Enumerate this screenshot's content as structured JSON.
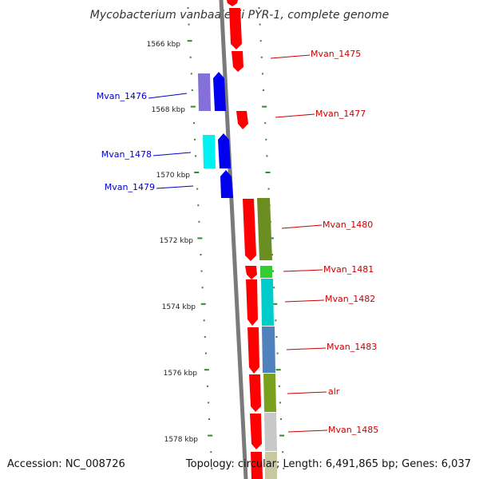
{
  "title": "Mycobacterium vanbaalenii PYR-1, complete genome",
  "footer": {
    "accession": "Accession: NC_008726",
    "summary": "Topology: circular; Length: 6,491,865 bp; Genes: 6,037"
  },
  "colors": {
    "backbone": "#7a7a7a",
    "tick_dots": "#2e8b2e",
    "label_forward": "#cc0000",
    "label_reverse": "#0000cc"
  },
  "chart_data": {
    "type": "genome-map",
    "title": "Mycobacterium vanbaalenii PYR-1, complete genome",
    "scale_unit": "kbp",
    "ticks": [
      "1566 kbp",
      "1568 kbp",
      "1570 kbp",
      "1572 kbp",
      "1574 kbp",
      "1576 kbp",
      "1578 kbp"
    ],
    "genes": [
      {
        "label": "",
        "strand": "forward",
        "color": "#ff0000",
        "start_kbp": 1564.7,
        "end_kbp": 1565.8
      },
      {
        "label": "Mvan_1475",
        "strand": "forward",
        "color": "#ff0000",
        "start_kbp": 1565.8,
        "end_kbp": 1566.4
      },
      {
        "label": "Mvan_1476",
        "strand": "reverse",
        "color": "#0000ee",
        "start_kbp": 1567.0,
        "end_kbp": 1568.2
      },
      {
        "label": "",
        "strand": "reverse",
        "color": "#8370d8",
        "start_kbp": 1567.0,
        "end_kbp": 1568.2
      },
      {
        "label": "Mvan_1477",
        "strand": "forward",
        "color": "#ff0000",
        "start_kbp": 1568.0,
        "end_kbp": 1568.6
      },
      {
        "label": "Mvan_1478",
        "strand": "reverse",
        "color": "#0000ee",
        "start_kbp": 1568.9,
        "end_kbp": 1569.9
      },
      {
        "label": "",
        "strand": "reverse",
        "color": "#00f0f0",
        "start_kbp": 1568.9,
        "end_kbp": 1569.9
      },
      {
        "label": "Mvan_1479",
        "strand": "reverse",
        "color": "#0000ee",
        "start_kbp": 1569.8,
        "end_kbp": 1570.7
      },
      {
        "label": "Mvan_1480",
        "strand": "forward",
        "color": "#ff0000",
        "start_kbp": 1570.7,
        "end_kbp": 1572.6
      },
      {
        "label": "",
        "strand": "forward",
        "color": "#6b8e23",
        "start_kbp": 1570.7,
        "end_kbp": 1572.6
      },
      {
        "label": "Mvan_1481",
        "strand": "forward",
        "color": "#ff0000",
        "start_kbp": 1572.8,
        "end_kbp": 1573.1
      },
      {
        "label": "",
        "strand": "forward",
        "color": "#33cc33",
        "start_kbp": 1572.8,
        "end_kbp": 1573.1
      },
      {
        "label": "Mvan_1482",
        "strand": "forward",
        "color": "#ff0000",
        "start_kbp": 1573.2,
        "end_kbp": 1574.6
      },
      {
        "label": "",
        "strand": "forward",
        "color": "#00cccc",
        "start_kbp": 1573.2,
        "end_kbp": 1574.6
      },
      {
        "label": "Mvan_1483",
        "strand": "forward",
        "color": "#ff0000",
        "start_kbp": 1574.6,
        "end_kbp": 1576.0
      },
      {
        "label": "",
        "strand": "forward",
        "color": "#4f81bd",
        "start_kbp": 1574.6,
        "end_kbp": 1576.0
      },
      {
        "label": "alr",
        "strand": "forward",
        "color": "#ff0000",
        "start_kbp": 1576.0,
        "end_kbp": 1577.2
      },
      {
        "label": "",
        "strand": "forward",
        "color": "#7aa020",
        "start_kbp": 1576.0,
        "end_kbp": 1577.2
      },
      {
        "label": "Mvan_1485",
        "strand": "forward",
        "color": "#ff0000",
        "start_kbp": 1577.2,
        "end_kbp": 1578.3
      },
      {
        "label": "",
        "strand": "forward",
        "color": "#c8c8c8",
        "start_kbp": 1577.2,
        "end_kbp": 1578.3
      },
      {
        "label": "",
        "strand": "forward",
        "color": "#ff0000",
        "start_kbp": 1578.4,
        "end_kbp": 1579.0
      },
      {
        "label": "",
        "strand": "forward",
        "color": "#c8c8a0",
        "start_kbp": 1578.4,
        "end_kbp": 1579.0
      }
    ]
  }
}
